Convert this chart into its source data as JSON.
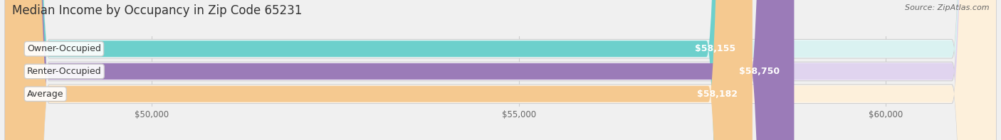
{
  "title": "Median Income by Occupancy in Zip Code 65231",
  "source": "Source: ZipAtlas.com",
  "categories": [
    "Owner-Occupied",
    "Renter-Occupied",
    "Average"
  ],
  "values": [
    58155,
    58750,
    58182
  ],
  "labels": [
    "$58,155",
    "$58,750",
    "$58,182"
  ],
  "bar_colors": [
    "#6dd0cc",
    "#9b7bb8",
    "#f5c990"
  ],
  "bar_light_colors": [
    "#daf2f1",
    "#e0d4ef",
    "#fdf0db"
  ],
  "bar_outer_colors": [
    "#e8f7f7",
    "#ede6f5",
    "#fef7ec"
  ],
  "xlim_min": 48000,
  "xlim_max": 61500,
  "xaxis_min": 48500,
  "xticks": [
    50000,
    55000,
    60000
  ],
  "xticklabels": [
    "$50,000",
    "$55,000",
    "$60,000"
  ],
  "background_color": "#f0f0f0",
  "title_fontsize": 12,
  "source_fontsize": 8,
  "label_fontsize": 9,
  "value_fontsize": 9,
  "bar_height": 0.72
}
